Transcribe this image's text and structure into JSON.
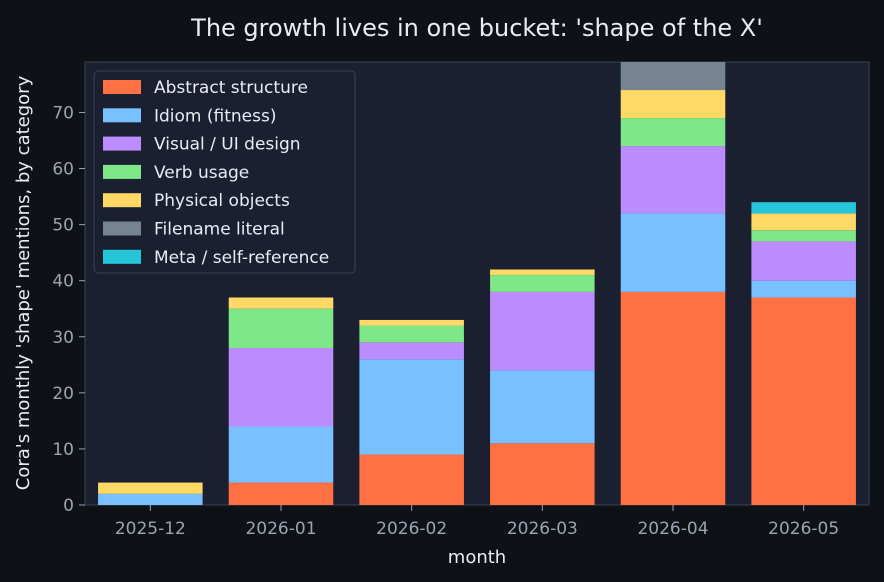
{
  "chart_data": {
    "type": "bar",
    "stacked": true,
    "title": "The growth lives in one bucket: 'shape of the X'",
    "xlabel": "month",
    "ylabel": "Cora's monthly 'shape' mentions, by category",
    "categories": [
      "2025-12",
      "2026-01",
      "2026-02",
      "2026-03",
      "2026-04",
      "2026-05"
    ],
    "ylim": [
      0,
      79
    ],
    "yticks": [
      0,
      10,
      20,
      30,
      40,
      50,
      60,
      70
    ],
    "legend_position": "top-left",
    "grid": false,
    "series": [
      {
        "name": "Abstract structure",
        "color": "#ff7043",
        "values": [
          0,
          4,
          9,
          11,
          38,
          37
        ]
      },
      {
        "name": "Idiom (fitness)",
        "color": "#79c0ff",
        "values": [
          2,
          10,
          17,
          13,
          14,
          3
        ]
      },
      {
        "name": "Visual / UI design",
        "color": "#bc8cff",
        "values": [
          0,
          14,
          3,
          14,
          12,
          7
        ]
      },
      {
        "name": "Verb usage",
        "color": "#7ee787",
        "values": [
          0,
          7,
          3,
          3,
          5,
          2
        ]
      },
      {
        "name": "Physical objects",
        "color": "#ffd866",
        "values": [
          2,
          2,
          1,
          1,
          5,
          3
        ]
      },
      {
        "name": "Filename literal",
        "color": "#768390",
        "values": [
          0,
          0,
          0,
          0,
          5,
          0
        ]
      },
      {
        "name": "Meta / self-reference",
        "color": "#26c6da",
        "values": [
          0,
          0,
          0,
          0,
          0,
          2
        ]
      }
    ]
  },
  "colors": {
    "page_background": "#0e1116",
    "plot_background": "#1b2030",
    "text": "#e6edf3",
    "tick_text": "#9aa4b2",
    "axis": "#3a4250"
  }
}
